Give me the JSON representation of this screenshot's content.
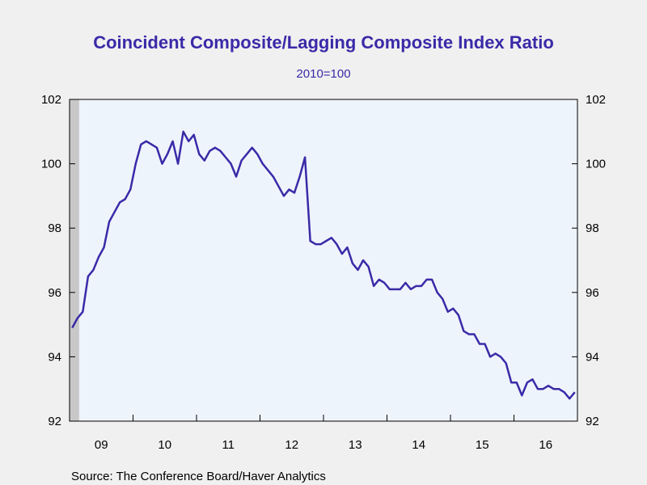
{
  "chart_data": {
    "type": "line",
    "title": "Coincident Composite/Lagging Composite Index Ratio",
    "subtitle": "2010=100",
    "source": "Source:  The Conference Board/Haver Analytics",
    "colors": {
      "title": "#3a2aa8",
      "line": "#3a2aa8",
      "plot_bg": "#eef4fb",
      "recession": "#c8c8c8",
      "page_bg": "#f0f0f0"
    },
    "ylim": [
      92,
      102
    ],
    "y_ticks": [
      "92",
      "94",
      "96",
      "98",
      "100",
      "102"
    ],
    "y_tick_values": [
      92,
      94,
      96,
      98,
      100,
      102
    ],
    "x_tick_labels": [
      "09",
      "10",
      "11",
      "12",
      "13",
      "14",
      "15",
      "16"
    ],
    "x_tick_years": [
      2009,
      2010,
      2011,
      2012,
      2013,
      2014,
      2015,
      2016
    ],
    "x_range": [
      "2009-01",
      "2016-12"
    ],
    "recession_shading": [
      "2009-01",
      "2009-06"
    ],
    "series": [
      {
        "start": "2009-01",
        "frequency": "monthly",
        "values": [
          94.9,
          95.2,
          95.4,
          96.5,
          96.7,
          97.1,
          97.4,
          98.2,
          98.5,
          98.8,
          98.9,
          99.2,
          100.0,
          100.6,
          100.7,
          100.6,
          100.5,
          100.0,
          100.3,
          100.7,
          100.0,
          101.0,
          100.7,
          100.9,
          100.3,
          100.1,
          100.4,
          100.5,
          100.4,
          100.2,
          100.0,
          99.6,
          100.1,
          100.3,
          100.5,
          100.3,
          100.0,
          99.8,
          99.6,
          99.3,
          99.0,
          99.2,
          99.1,
          99.6,
          100.2,
          97.6,
          97.5,
          97.5,
          97.6,
          97.7,
          97.5,
          97.2,
          97.4,
          96.9,
          96.7,
          97.0,
          96.8,
          96.2,
          96.4,
          96.3,
          96.1,
          96.1,
          96.1,
          96.3,
          96.1,
          96.2,
          96.2,
          96.4,
          96.4,
          96.0,
          95.8,
          95.4,
          95.5,
          95.3,
          94.8,
          94.7,
          94.7,
          94.4,
          94.4,
          94.0,
          94.1,
          94.0,
          93.8,
          93.2,
          93.2,
          92.8,
          93.2,
          93.3,
          93.0,
          93.0,
          93.1,
          93.0,
          93.0,
          92.9,
          92.7,
          92.9
        ]
      }
    ]
  }
}
